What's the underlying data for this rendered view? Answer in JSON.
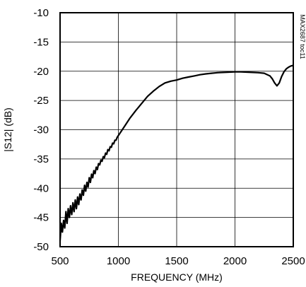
{
  "chart_data": {
    "type": "line",
    "title": "",
    "xlabel": "FREQUENCY (MHz)",
    "ylabel": "|S12| (dB)",
    "xlim": [
      500,
      2500
    ],
    "ylim": [
      -50,
      -10
    ],
    "x_ticks": [
      500,
      1000,
      1500,
      2000,
      2500
    ],
    "y_ticks": [
      -10,
      -15,
      -20,
      -25,
      -30,
      -35,
      -40,
      -45,
      -50
    ],
    "grid": true,
    "legend": "none",
    "annotation": "MAX2687 toc11",
    "line_color": "#000000",
    "series": [
      {
        "x": [
          500,
          510,
          520,
          530,
          540,
          550,
          560,
          570,
          580,
          590,
          600,
          610,
          620,
          630,
          640,
          650,
          660,
          670,
          680,
          690,
          700,
          710,
          720,
          730,
          740,
          750,
          760,
          770,
          780,
          790,
          800,
          810,
          820,
          830,
          840,
          850,
          860,
          870,
          880,
          890,
          900,
          910,
          920,
          930,
          940,
          950,
          960,
          970,
          980,
          990,
          1000,
          1050,
          1100,
          1150,
          1200,
          1250,
          1300,
          1350,
          1400,
          1450,
          1500,
          1550,
          1600,
          1650,
          1700,
          1750,
          1800,
          1850,
          1900,
          1950,
          2000,
          2050,
          2100,
          2150,
          2200,
          2250,
          2300,
          2320,
          2340,
          2360,
          2380,
          2400,
          2420,
          2440,
          2460,
          2480,
          2500
        ],
        "values": [
          -49,
          -46,
          -47.5,
          -45.5,
          -46.8,
          -44,
          -46,
          -43.5,
          -45,
          -43,
          -44.5,
          -42.5,
          -44,
          -42,
          -43.5,
          -41.5,
          -42.8,
          -41,
          -42,
          -40.3,
          -41.2,
          -39.5,
          -40.5,
          -39,
          -39.8,
          -38.2,
          -39,
          -37.6,
          -38.2,
          -37,
          -37.5,
          -36.4,
          -36.8,
          -35.8,
          -36,
          -35.2,
          -35.4,
          -34.6,
          -34.8,
          -34,
          -34.2,
          -33.4,
          -33.6,
          -32.9,
          -33,
          -32.3,
          -32.4,
          -31.8,
          -31.8,
          -31.3,
          -31,
          -29.5,
          -28,
          -26.7,
          -25.5,
          -24.3,
          -23.4,
          -22.6,
          -22,
          -21.7,
          -21.5,
          -21.2,
          -21,
          -20.8,
          -20.6,
          -20.45,
          -20.35,
          -20.25,
          -20.2,
          -20.15,
          -20.1,
          -20.1,
          -20.15,
          -20.2,
          -20.25,
          -20.35,
          -20.8,
          -21.3,
          -22,
          -22.5,
          -22,
          -20.9,
          -20.1,
          -19.6,
          -19.3,
          -19.1,
          -19
        ]
      }
    ]
  }
}
